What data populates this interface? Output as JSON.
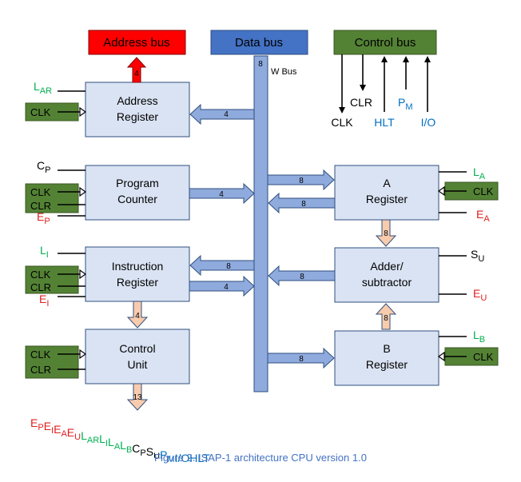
{
  "buses": {
    "address": "Address bus",
    "data": "Data bus",
    "control": "Control bus",
    "w_bus_width": "8",
    "w_bus": "W Bus"
  },
  "control_signals": {
    "clr": "CLR",
    "clk": "CLK",
    "hlt": "HLT",
    "pm": "P",
    "pm_sub": "M",
    "io": "I/O"
  },
  "blocks": {
    "address_register": {
      "line1": "Address",
      "line2": "Register"
    },
    "program_counter": {
      "line1": "Program",
      "line2": "Counter"
    },
    "instruction_register": {
      "line1": "Instruction",
      "line2": "Register"
    },
    "control_unit": {
      "line1": "Control",
      "line2": "Unit"
    },
    "a_register": {
      "line1": "A",
      "line2": "Register"
    },
    "adder": {
      "line1": "Adder/",
      "line2": "subtractor"
    },
    "b_register": {
      "line1": "B",
      "line2": "Register"
    }
  },
  "inputs": {
    "lar": "L",
    "lar_sub": "AR",
    "cp": "C",
    "cp_sub": "P",
    "ep": "E",
    "ep_sub": "P",
    "li": "L",
    "li_sub": "I",
    "ei": "E",
    "ei_sub": "I",
    "la": "L",
    "la_sub": "A",
    "ea": "E",
    "ea_sub": "A",
    "su": "S",
    "su_sub": "U",
    "eu": "E",
    "eu_sub": "U",
    "lb": "L",
    "lb_sub": "B",
    "clk": "CLK",
    "clr": "CLR"
  },
  "widths": {
    "addr_out": "4",
    "ar_in": "4",
    "pc_out": "4",
    "a_in": "8",
    "a_out": "8",
    "a_to_adder": "8",
    "ir_out_bus": "8",
    "ir_in": "4",
    "adder_out": "8",
    "ir_to_cu": "4",
    "b_to_adder": "8",
    "b_in": "8",
    "cu_out": "13"
  },
  "control_word": [
    {
      "text": "E",
      "sub": "P",
      "color": "#e02020"
    },
    {
      "text": "E",
      "sub": "I",
      "color": "#e02020"
    },
    {
      "text": "E",
      "sub": "A",
      "color": "#e02020"
    },
    {
      "text": "E",
      "sub": "U",
      "color": "#e02020"
    },
    {
      "text": "L",
      "sub": "AR",
      "color": "#00b050"
    },
    {
      "text": "L",
      "sub": "I",
      "color": "#00b050"
    },
    {
      "text": "L",
      "sub": "A",
      "color": "#00b050"
    },
    {
      "text": "L",
      "sub": "B",
      "color": "#00b050"
    },
    {
      "text": "C",
      "sub": "P",
      "color": "#000000"
    },
    {
      "text": "S",
      "sub": "U",
      "color": "#000000"
    },
    {
      "text": "P",
      "sub": "M",
      "color": "#0070c0"
    },
    {
      "text": "I/O",
      "sub": "",
      "color": "#0070c0"
    },
    {
      "text": "HLT",
      "sub": "",
      "color": "#0070c0"
    }
  ],
  "colors": {
    "red": "#e02020",
    "green": "#00b050",
    "blue": "#0070c0",
    "caption": "#4472c4"
  },
  "caption": "Figure 2.  ISAP-1 architecture CPU version 1.0"
}
